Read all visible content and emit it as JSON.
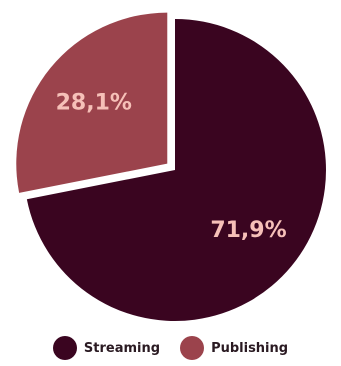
{
  "chart_data": {
    "type": "pie",
    "title": "",
    "slices": [
      {
        "label": "Streaming",
        "value": 71.9,
        "display": "71,9%",
        "color": "#3a0520",
        "label_color": "#f6c0b8",
        "exploded": false
      },
      {
        "label": "Publishing",
        "value": 28.1,
        "display": "28,1%",
        "color": "#9b434c",
        "label_color": "#f6c0b8",
        "exploded": true
      }
    ],
    "start_angle_deg": 0,
    "direction": "clockwise",
    "legend_position": "bottom"
  }
}
